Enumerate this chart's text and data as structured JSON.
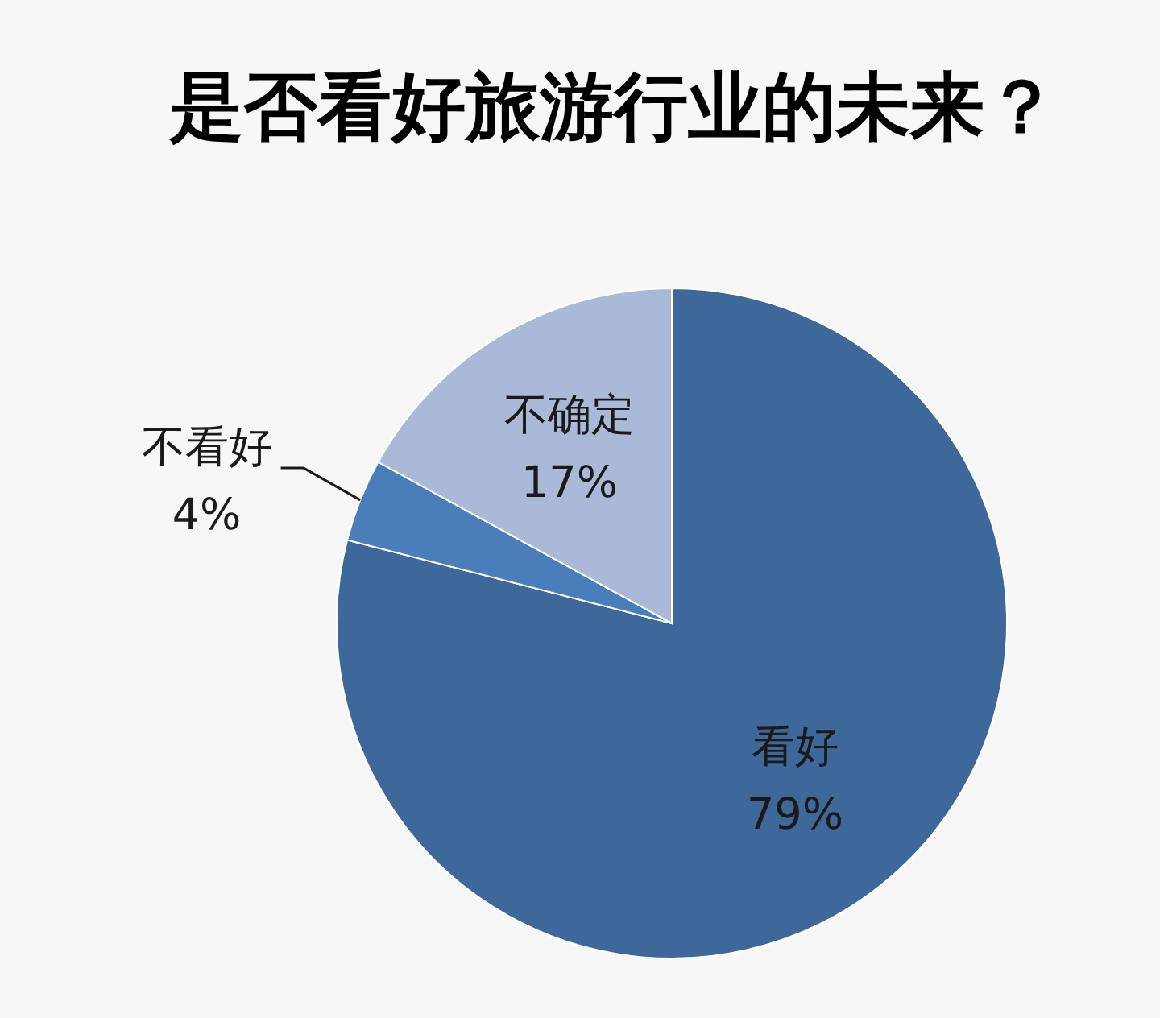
{
  "chart_data": {
    "type": "pie",
    "title": "是否看好旅游行业的未来？",
    "categories": [
      "看好",
      "不看好",
      "不确定"
    ],
    "values": [
      79,
      4,
      17
    ],
    "colors": [
      "#3e6899",
      "#4a7ebb",
      "#aab9d8"
    ],
    "value_labels": [
      "79%",
      "4%",
      "17%"
    ]
  }
}
